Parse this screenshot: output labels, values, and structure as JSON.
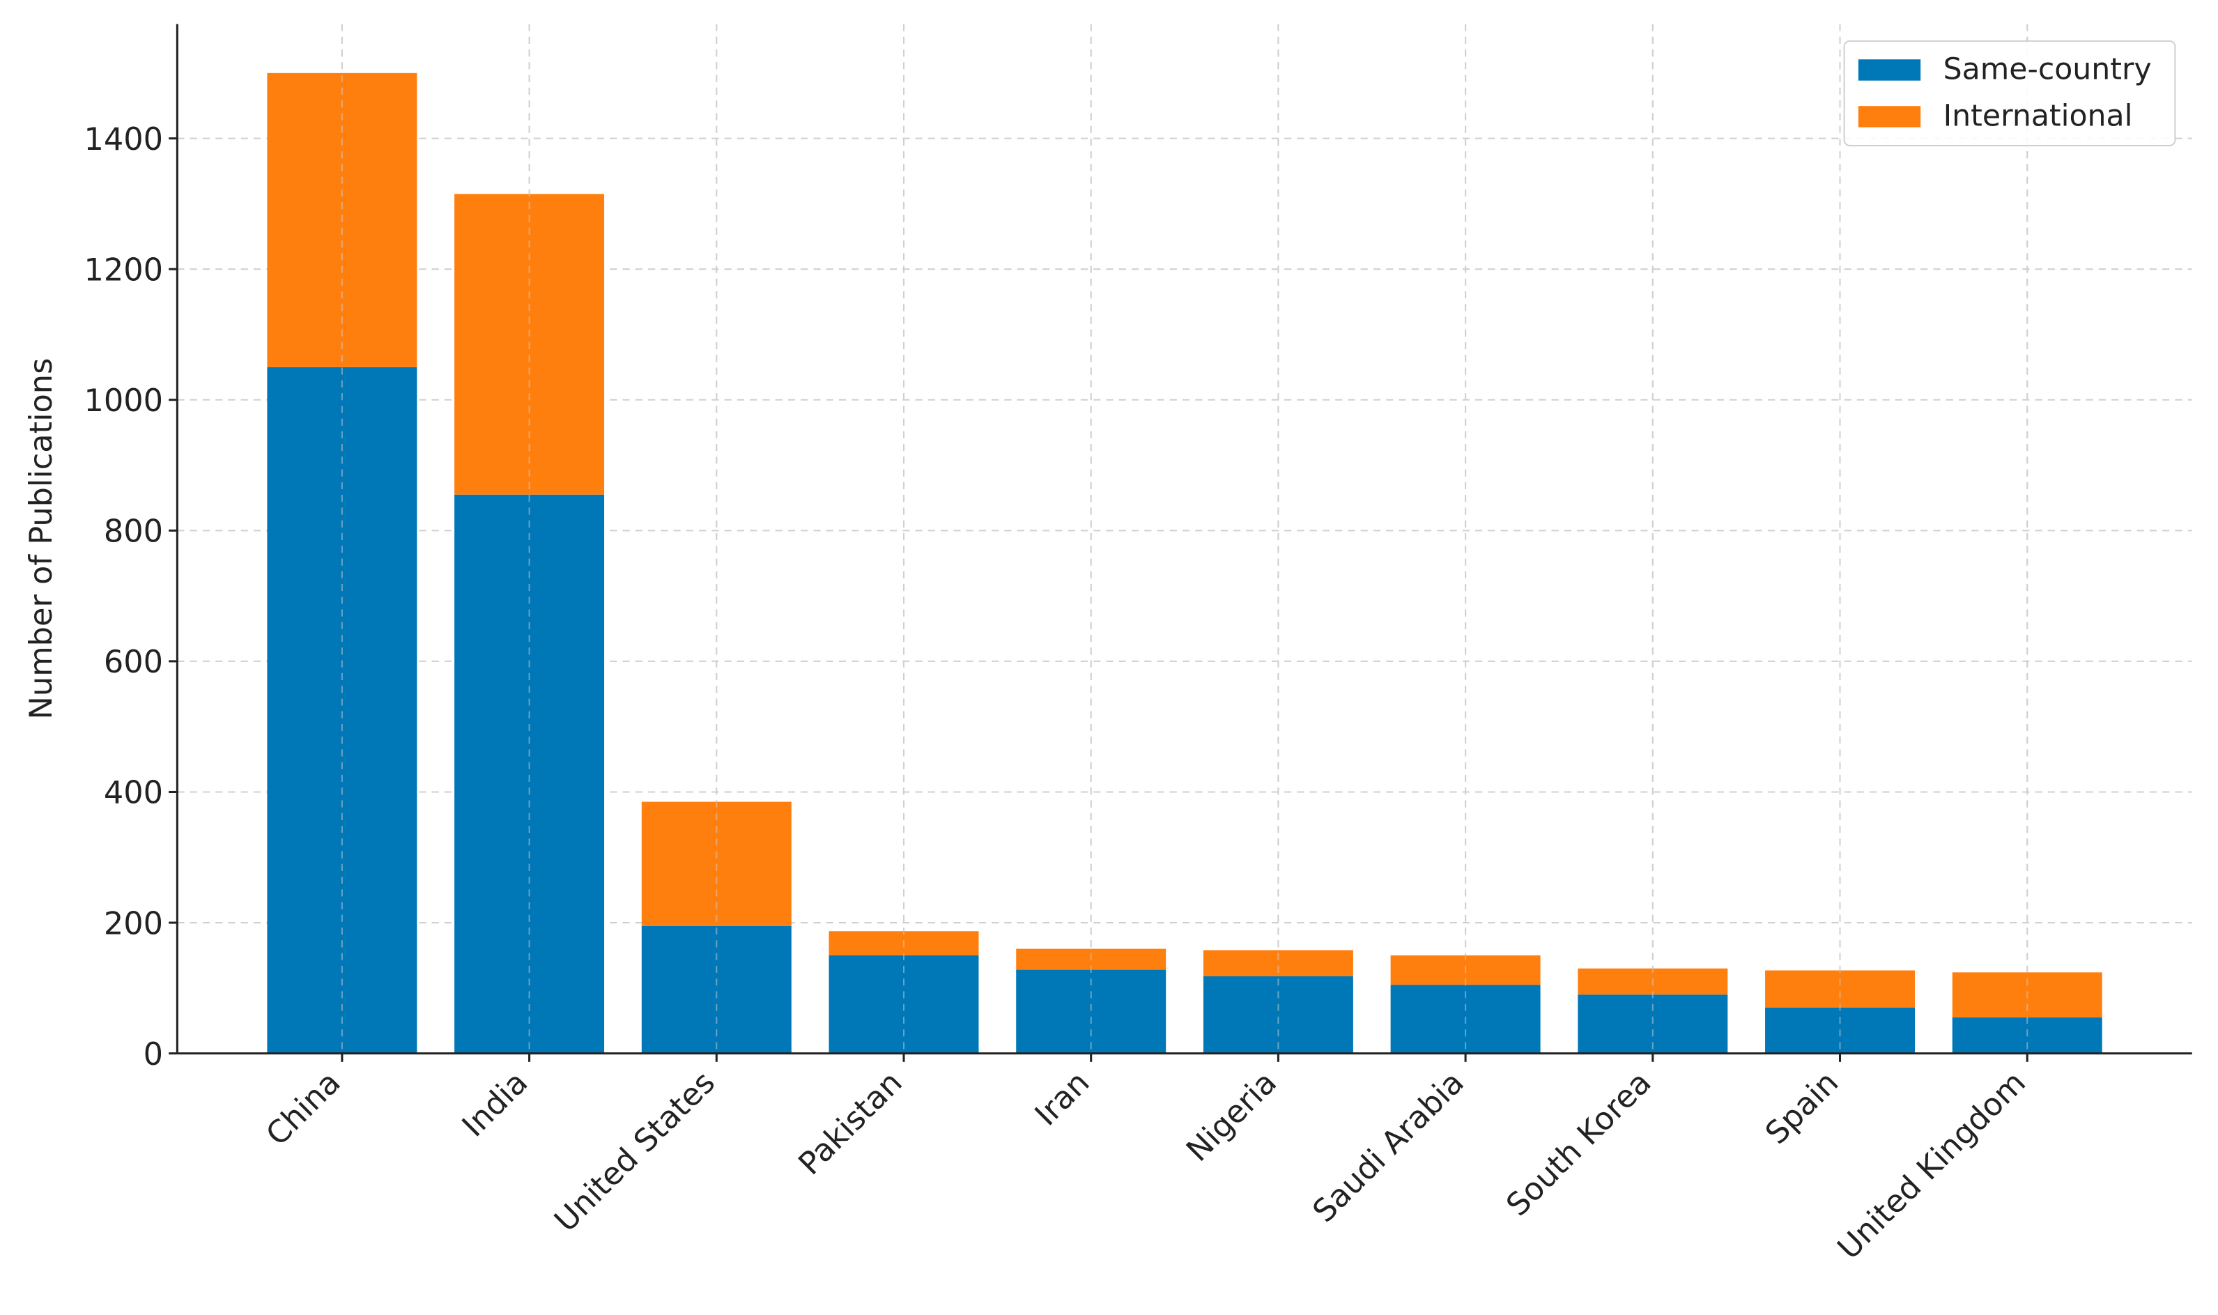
{
  "chart_data": {
    "type": "stacked-bar",
    "y_label": "Number of Publications",
    "categories": [
      "China",
      "India",
      "United States",
      "Pakistan",
      "Iran",
      "Nigeria",
      "Saudi Arabia",
      "South Korea",
      "Spain",
      "United Kingdom"
    ],
    "series": [
      {
        "name": "Same-country",
        "color": "#0077b6",
        "values": [
          1050,
          855,
          195,
          150,
          128,
          118,
          105,
          90,
          70,
          55
        ]
      },
      {
        "name": "International",
        "color": "#ff7f0e",
        "values": [
          450,
          460,
          190,
          37,
          32,
          40,
          45,
          40,
          57,
          69
        ]
      }
    ],
    "ylim": [
      0,
      1575
    ],
    "yticks": [
      0,
      200,
      400,
      600,
      800,
      1000,
      1200,
      1400
    ],
    "grid": true,
    "legend": "upper right"
  }
}
